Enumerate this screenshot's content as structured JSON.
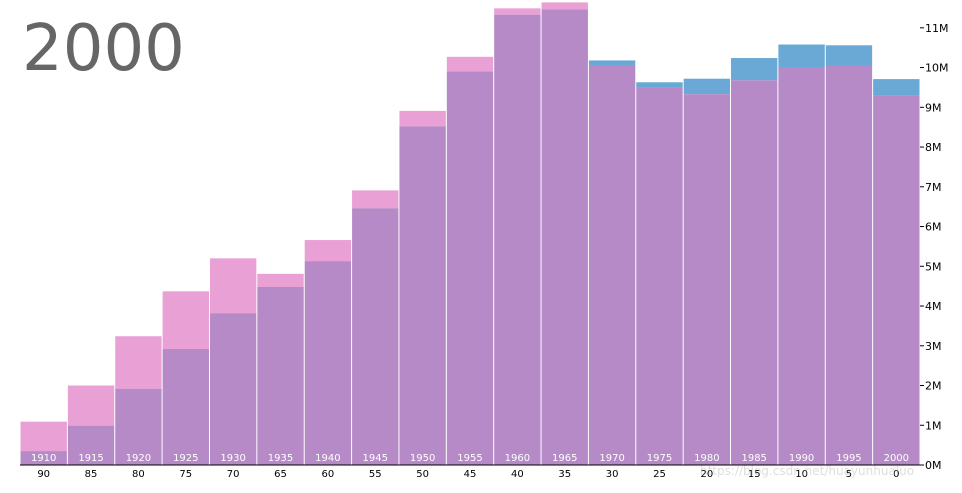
{
  "year_title": "2000",
  "watermark": "https://blog.csdn.net/huayunhualuo",
  "colors": {
    "male": "#6aa8d6",
    "female": "#e9a0d5",
    "overlap": "#b58ac6",
    "year_title": "#666666"
  },
  "chart_data": {
    "type": "bar",
    "title": "2000",
    "birth_years": [
      "1910",
      "1915",
      "1920",
      "1925",
      "1930",
      "1935",
      "1940",
      "1945",
      "1950",
      "1955",
      "1960",
      "1965",
      "1970",
      "1975",
      "1980",
      "1985",
      "1990",
      "1995",
      "2000"
    ],
    "ages": [
      "90",
      "85",
      "80",
      "75",
      "70",
      "65",
      "60",
      "55",
      "50",
      "45",
      "40",
      "35",
      "30",
      "25",
      "20",
      "15",
      "10",
      "5",
      "0"
    ],
    "series": [
      {
        "values": [
          350000,
          990000,
          1920000,
          2920000,
          3820000,
          4480000,
          5130000,
          6460000,
          8520000,
          9900000,
          11330000,
          11460000,
          10180000,
          9630000,
          9720000,
          10240000,
          10580000,
          10560000,
          9710000
        ]
      },
      {
        "values": [
          1090000,
          2000000,
          3240000,
          4370000,
          5200000,
          4810000,
          5660000,
          6910000,
          8910000,
          10270000,
          11490000,
          11640000,
          10040000,
          9500000,
          9330000,
          9680000,
          9990000,
          10040000,
          9300000
        ]
      }
    ],
    "y_ticks": [
      "0M",
      "1M",
      "2M",
      "3M",
      "4M",
      "5M",
      "6M",
      "7M",
      "8M",
      "9M",
      "10M",
      "11M"
    ],
    "ylim": [
      0,
      11700000
    ],
    "y_axis_side": "right",
    "grid": true
  }
}
